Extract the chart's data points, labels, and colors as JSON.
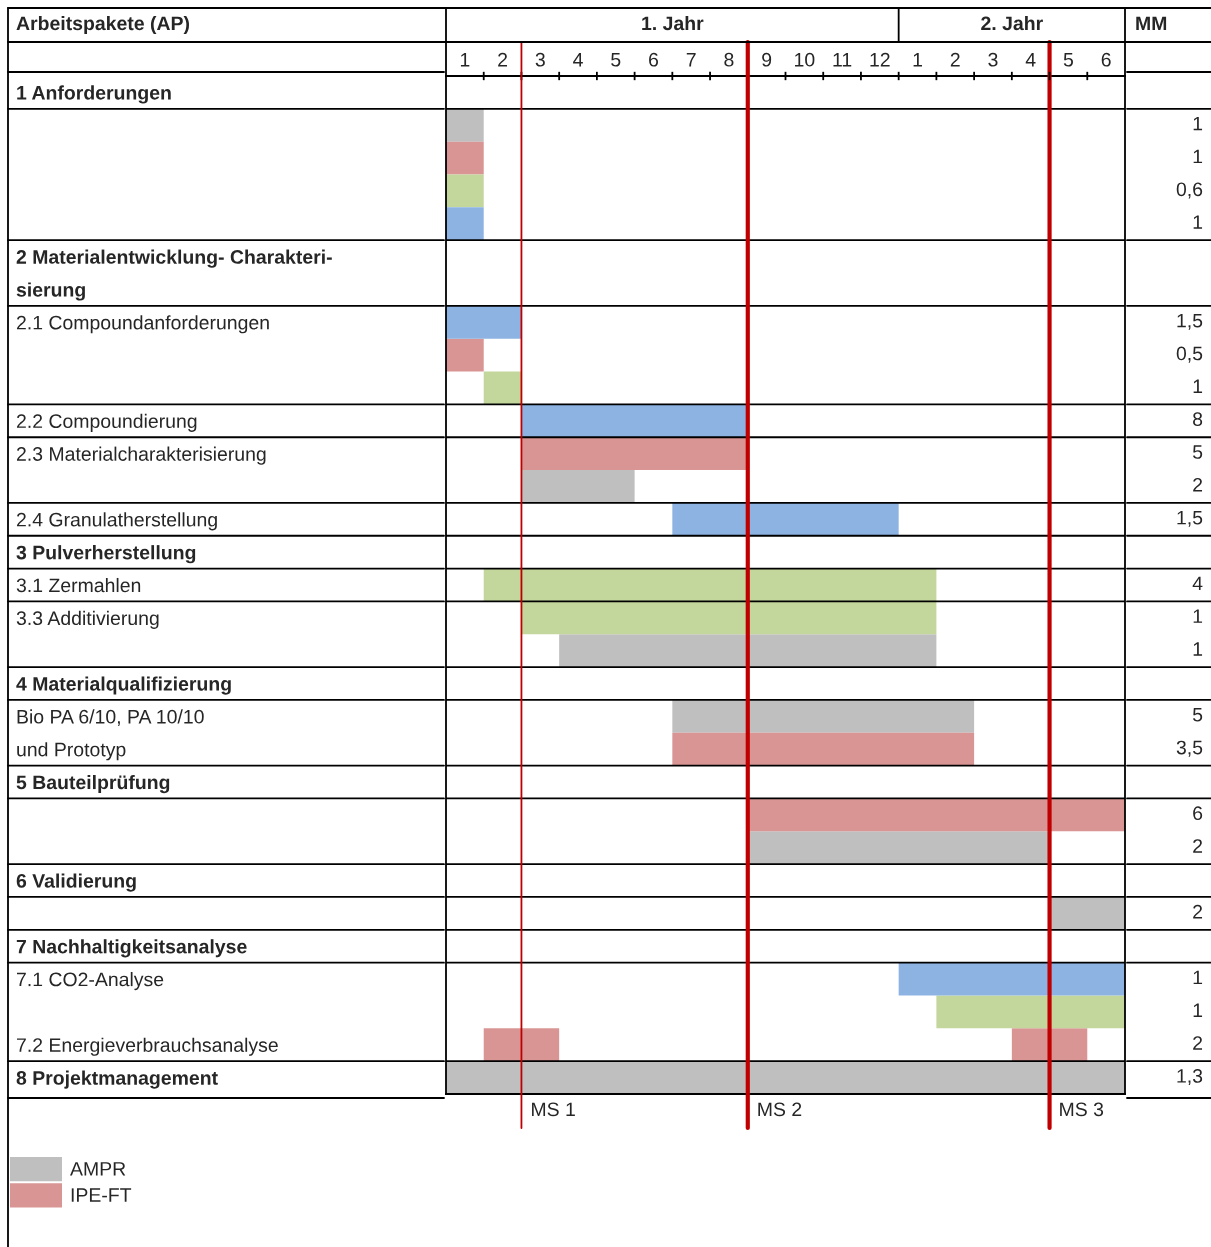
{
  "chart_data": [
    {
      "type": "bar",
      "orientation": "horizontal",
      "ylabel": "Arbeitspakete (AP)",
      "categories": [
        "1 Anforderungen",
        null,
        null,
        null,
        null,
        "2 Materialentwicklung- Charakteri-",
        "sierung",
        "2.1 Compoundanforderungen",
        null,
        null,
        "2.2 Compoundierung",
        "2.3 Materialcharakterisierung",
        null,
        "2.4 Granulatherstellung",
        "3 Pulverherstellung",
        "3.1 Zermahlen",
        "3.3 Additivierung",
        null,
        "4 Materialqualifizierung",
        "Bio PA 6/10, PA 10/10",
        "und Prototyp",
        "5 Bauteilprüfung",
        null,
        null,
        "6 Validierung",
        null,
        "7 Nachhaltigkeitsanalyse",
        "7.1 CO2-Analyse",
        null,
        "7.2 Energieverbrauchsanalyse",
        "8 Projektmanagement"
      ],
      "xlim": [
        0,
        18
      ],
      "xticks": [
        {
          "value": 0.5,
          "label": "1"
        },
        {
          "value": 1,
          "label": null
        },
        {
          "value": 1.5,
          "label": "2"
        },
        {
          "value": 2,
          "label": null
        },
        {
          "value": 2.5,
          "label": "3"
        },
        {
          "value": 3,
          "label": null
        },
        {
          "value": 3.5,
          "label": "4"
        },
        {
          "value": 4,
          "label": null
        },
        {
          "value": 4.5,
          "label": "5"
        },
        {
          "value": 5,
          "label": null
        },
        {
          "value": 5.5,
          "label": "6"
        },
        {
          "value": 6,
          "label": null
        },
        {
          "value": 6.5,
          "label": "7"
        },
        {
          "value": 7,
          "label": null
        },
        {
          "value": 7.5,
          "label": "8"
        },
        {
          "value": 8,
          "label": null
        },
        {
          "value": 8.5,
          "label": "9"
        },
        {
          "value": 9,
          "label": null
        },
        {
          "value": 9.5,
          "label": "10"
        },
        {
          "value": 10,
          "label": null
        },
        {
          "value": 10.5,
          "label": "11"
        },
        {
          "value": 11,
          "label": null
        },
        {
          "value": 11.5,
          "label": "12"
        },
        {
          "value": 12,
          "label": null
        }
      ],
      "x2lim": [
        -12,
        6
      ],
      "x2ticks": [
        {
          "value": 0.5,
          "label": "1"
        },
        {
          "value": 1,
          "label": null
        },
        {
          "value": 1.5,
          "label": "2"
        },
        {
          "value": 2,
          "label": null
        },
        {
          "value": 2.5,
          "label": "3"
        },
        {
          "value": 3,
          "label": null
        },
        {
          "value": 3.5,
          "label": "4"
        },
        {
          "value": 4,
          "label": null
        },
        {
          "value": 4.5,
          "label": "5"
        },
        {
          "value": 5,
          "label": null
        },
        {
          "value": 5.5,
          "label": "6"
        }
      ],
      "annotations": [
        "1. Jahr",
        "2. Jahr"
      ],
      "series": [
        {
          "name": "AMPR",
          "color": "#bfbfbf",
          "values": [
            null,
            1,
            null,
            null,
            null,
            null,
            null,
            null,
            null,
            null,
            null,
            null,
            3,
            null,
            null,
            null,
            null,
            10,
            null,
            8,
            null,
            null,
            null,
            8,
            null,
            2,
            null,
            null,
            null,
            null,
            18
          ],
          "base": [
            null,
            0,
            null,
            null,
            null,
            null,
            null,
            null,
            null,
            null,
            null,
            null,
            2,
            null,
            null,
            null,
            null,
            3,
            null,
            6,
            null,
            null,
            null,
            8,
            null,
            16,
            null,
            null,
            null,
            null,
            0
          ]
        },
        {
          "name": "IPE-FT",
          "color": "#d99594",
          "values": [
            null,
            null,
            1,
            null,
            null,
            null,
            null,
            null,
            1,
            null,
            null,
            6,
            null,
            null,
            null,
            null,
            null,
            null,
            null,
            null,
            8,
            null,
            10,
            null,
            null,
            null,
            null,
            null,
            null,
            2,
            null
          ],
          "base": [
            null,
            null,
            0,
            null,
            null,
            null,
            null,
            null,
            0,
            null,
            null,
            2,
            null,
            null,
            null,
            null,
            null,
            null,
            null,
            null,
            6,
            null,
            8,
            null,
            null,
            null,
            null,
            null,
            null,
            1,
            null
          ]
        },
        {
          "color": "#d99594",
          "values": [
            null,
            null,
            null,
            null,
            null,
            null,
            null,
            null,
            null,
            null,
            null,
            null,
            null,
            null,
            null,
            null,
            null,
            null,
            null,
            null,
            null,
            null,
            null,
            null,
            null,
            null,
            null,
            null,
            null,
            2,
            null
          ],
          "base": [
            null,
            null,
            null,
            null,
            null,
            null,
            null,
            null,
            null,
            null,
            null,
            null,
            null,
            null,
            null,
            null,
            null,
            null,
            null,
            null,
            null,
            null,
            null,
            null,
            null,
            null,
            null,
            null,
            null,
            15,
            null
          ]
        },
        {
          "color": "#c3d69b",
          "values": [
            null,
            null,
            null,
            1,
            null,
            null,
            null,
            null,
            null,
            1,
            null,
            null,
            null,
            null,
            null,
            12,
            11,
            null,
            null,
            null,
            null,
            null,
            null,
            null,
            null,
            null,
            null,
            null,
            5,
            null,
            null
          ],
          "base": [
            null,
            null,
            null,
            0,
            null,
            null,
            null,
            null,
            null,
            1,
            null,
            null,
            null,
            null,
            null,
            1,
            2,
            null,
            null,
            null,
            null,
            null,
            null,
            null,
            null,
            null,
            null,
            null,
            13,
            null,
            null
          ]
        },
        {
          "color": "#8db3e2",
          "values": [
            null,
            null,
            null,
            null,
            1,
            null,
            null,
            2,
            null,
            null,
            6,
            null,
            null,
            6,
            null,
            null,
            null,
            null,
            null,
            null,
            null,
            null,
            null,
            null,
            null,
            null,
            null,
            6,
            null,
            null,
            null
          ],
          "base": [
            null,
            null,
            null,
            null,
            0,
            null,
            null,
            0,
            null,
            null,
            2,
            null,
            null,
            6,
            null,
            null,
            null,
            null,
            null,
            null,
            null,
            null,
            null,
            null,
            null,
            null,
            null,
            12,
            null,
            null,
            null
          ]
        }
      ],
      "ref_lines": [
        {
          "axis": "x",
          "value": 2,
          "label": "MS 1",
          "color": "#c00000"
        },
        {
          "axis": "x",
          "value": 8,
          "label": "MS 2",
          "color": "#c00000"
        },
        {
          "axis": "x",
          "value": 16,
          "label": "MS 3",
          "color": "#c00000"
        }
      ],
      "legend": "bottom left"
    },
    {
      "type": "other",
      "title": "MM",
      "categories": [
        null,
        null,
        null,
        null,
        null,
        null,
        null,
        null,
        null,
        null,
        null,
        null,
        null,
        null,
        null,
        null,
        null,
        null,
        null,
        null,
        null,
        null,
        null,
        null,
        null,
        null,
        null,
        null,
        null,
        null,
        null
      ],
      "values": [
        null,
        1,
        1,
        0.6,
        1,
        null,
        null,
        1.5,
        0.5,
        1,
        8,
        5,
        2,
        1.5,
        null,
        4,
        1,
        1,
        null,
        5,
        3.5,
        null,
        6,
        2,
        null,
        2,
        null,
        1,
        1,
        2,
        1.3
      ],
      "value_labels": [
        null,
        "1",
        "1",
        "0,6",
        "1",
        null,
        null,
        "1,5",
        "0,5",
        "1",
        "8",
        "5",
        "2",
        "1,5",
        null,
        "4",
        "1",
        "1",
        null,
        "5",
        "3,5",
        null,
        "6",
        "2",
        null,
        "2",
        null,
        "1",
        "1",
        "2",
        "1,3"
      ]
    }
  ]
}
